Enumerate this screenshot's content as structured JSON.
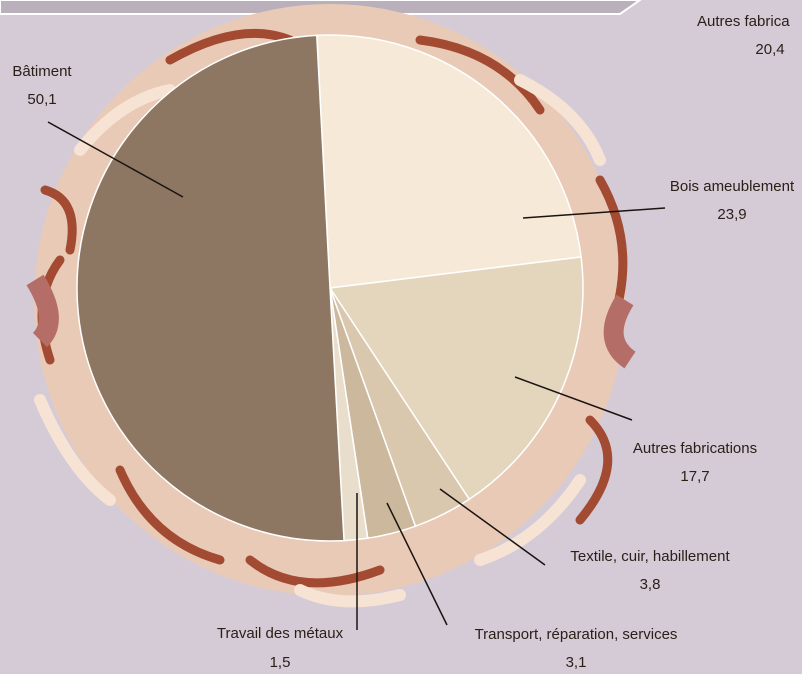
{
  "chart_data": {
    "type": "pie",
    "categories": [
      "Bois ameublement",
      "Autres fabrications",
      "Textile, cuir, habillement",
      "Transport, réparation, services",
      "Travail des métaux",
      "Bâtiment"
    ],
    "values": [
      23.9,
      17.7,
      3.8,
      3.1,
      1.5,
      50.1
    ],
    "value_labels": [
      "23,9",
      "17,7",
      "3,8",
      "3,1",
      "1,5",
      "50,1"
    ],
    "colors": [
      "#f6e9d8",
      "#e4d5bd",
      "#d9c7ae",
      "#cbb89d",
      "#e9ddcb",
      "#8d7662"
    ]
  },
  "cropped_neighbor_label": {
    "name": "Autres fabrica",
    "value": "20,4"
  }
}
